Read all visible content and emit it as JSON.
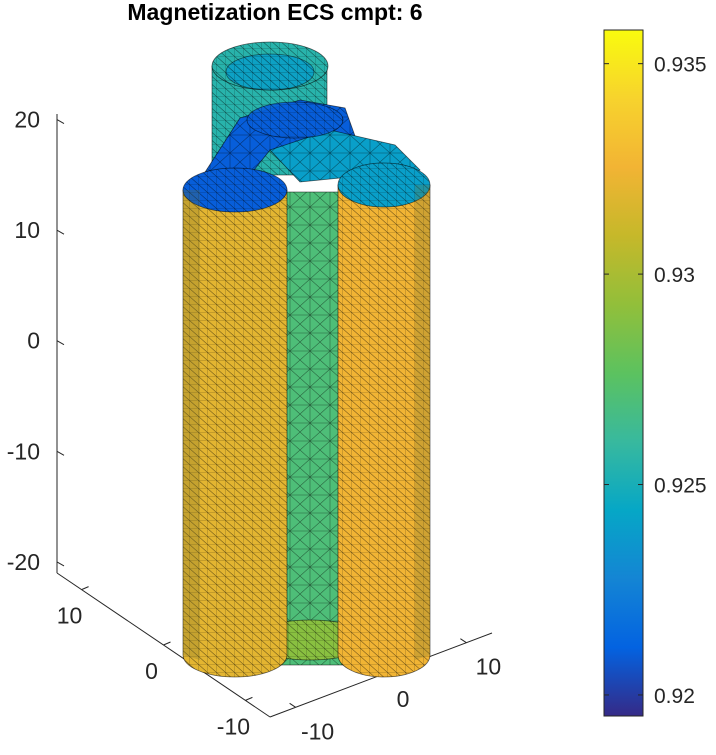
{
  "chart_data": {
    "type": "3d-surface-mesh",
    "title": "Magnetization ECS cmpt: 6",
    "axes": {
      "x": {
        "ticks": [
          -10,
          0,
          10
        ]
      },
      "y": {
        "ticks": [
          -10,
          0,
          10
        ]
      },
      "z": {
        "ticks": [
          -20,
          -10,
          0,
          10,
          20
        ]
      }
    },
    "colorbar": {
      "colormap": "parula",
      "range": [
        0.9195,
        0.9358
      ],
      "ticks": [
        0.92,
        0.925,
        0.93,
        0.935
      ],
      "tick_labels": [
        "0.92",
        "0.925",
        "0.93",
        "0.935"
      ]
    },
    "regions": [
      {
        "name": "front-left-cylinder",
        "value": 0.932
      },
      {
        "name": "front-middle-cylinder",
        "value": 0.927
      },
      {
        "name": "front-right-cylinder",
        "value": 0.9325
      },
      {
        "name": "back-cylinder",
        "value": 0.9255
      },
      {
        "name": "left-connector",
        "value": 0.921
      },
      {
        "name": "right-connector",
        "value": 0.924
      },
      {
        "name": "bottom-inner",
        "value": 0.929
      }
    ],
    "grid": false
  }
}
